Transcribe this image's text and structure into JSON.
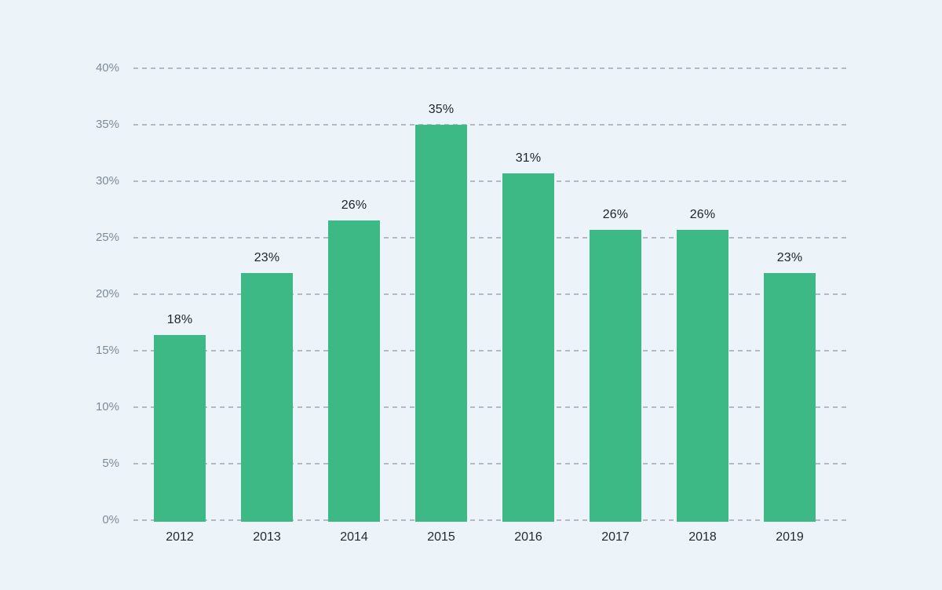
{
  "chart_data": {
    "type": "bar",
    "title": "",
    "xlabel": "",
    "ylabel": "",
    "categories": [
      "2012",
      "2013",
      "2014",
      "2015",
      "2016",
      "2017",
      "2018",
      "2019"
    ],
    "values": [
      18,
      23,
      26,
      35,
      31,
      26,
      26,
      23
    ],
    "data_labels": [
      "18%",
      "23%",
      "26%",
      "35%",
      "31%",
      "26%",
      "26%",
      "23%"
    ],
    "apparent_bar_heights_pct": [
      16.4,
      21.9,
      26.5,
      35.0,
      30.7,
      25.7,
      25.7,
      21.9
    ],
    "ylim": [
      0,
      40
    ],
    "y_tick_step": 5,
    "y_ticks": [
      0,
      5,
      10,
      15,
      20,
      25,
      30,
      35,
      40
    ],
    "y_tick_labels": [
      "0%",
      "5%",
      "10%",
      "15%",
      "20%",
      "25%",
      "30%",
      "35%",
      "40%"
    ],
    "grid": "horizontal-dashed",
    "legend": "none",
    "colors": {
      "bar": "#3cb984",
      "background": "#edf4f9",
      "gridline": "#b3bac3",
      "y_tick_text": "#7d8b99",
      "x_tick_text": "#262a2f",
      "data_label_text": "#1f2327"
    }
  }
}
